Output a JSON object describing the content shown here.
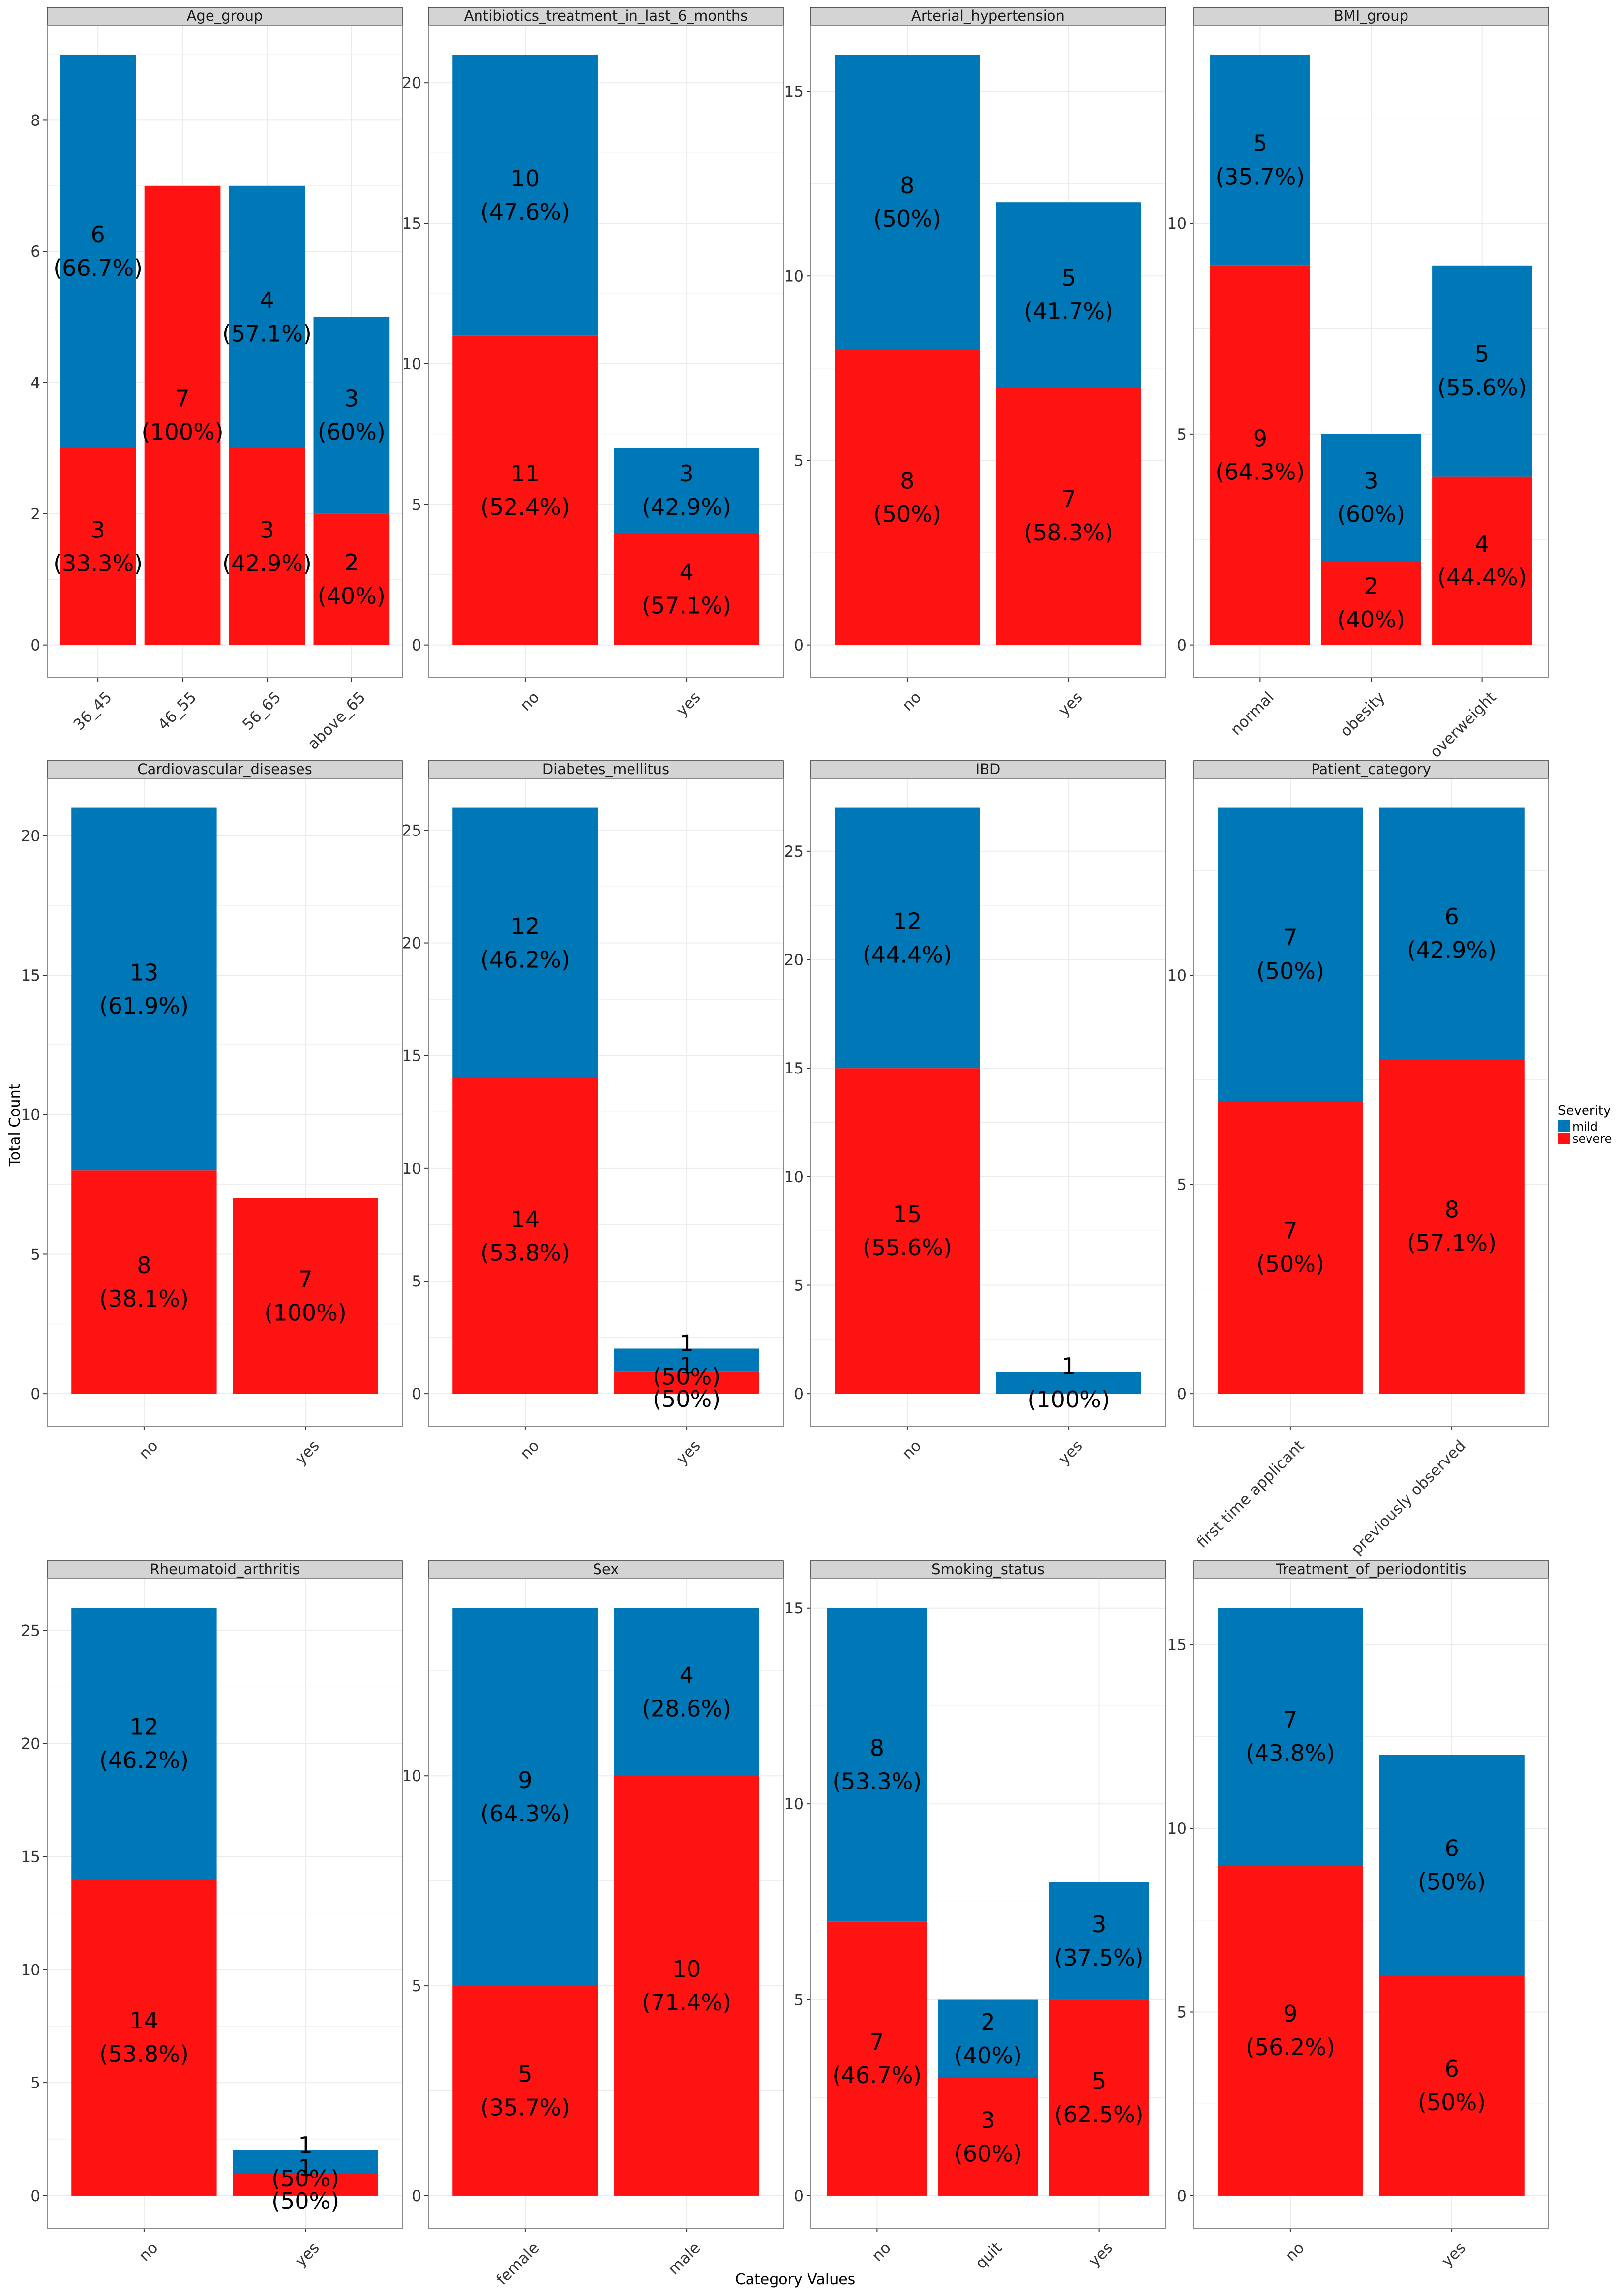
{
  "figure": {
    "x_axis_title": "Category Values",
    "y_axis_title": "Total Count",
    "legend_title": "Severity",
    "legend_items": [
      {
        "key": "mild",
        "label": "mild"
      },
      {
        "key": "severe",
        "label": "severe"
      }
    ],
    "colors": {
      "mild": "#0077B6",
      "severe": "#FF1212",
      "strip": "#D4D4D4",
      "grid": "#EBEBEB",
      "panel_border": "#8A8A8A"
    }
  },
  "chart_data": [
    {
      "type": "bar",
      "title": "Age_group",
      "ylim": [
        0,
        9.45
      ],
      "yticks": [
        0,
        2,
        4,
        6,
        8
      ],
      "categories": [
        "36_45",
        "46_55",
        "56_65",
        "above_65"
      ],
      "series": [
        {
          "name": "severe",
          "values": [
            3,
            7,
            3,
            2
          ],
          "labels": [
            "3\n(33.3%)",
            "7\n(100%)",
            "3\n(42.9%)",
            "2\n(40%)"
          ]
        },
        {
          "name": "mild",
          "values": [
            6,
            0,
            4,
            3
          ],
          "labels": [
            "6\n(66.7%)",
            "",
            "4\n(57.1%)",
            "3\n(60%)"
          ]
        }
      ]
    },
    {
      "type": "bar",
      "title": "Antibiotics_treatment_in_last_6_months",
      "ylim": [
        0,
        22.05
      ],
      "yticks": [
        0,
        5,
        10,
        15,
        20
      ],
      "categories": [
        "no",
        "yes"
      ],
      "series": [
        {
          "name": "severe",
          "values": [
            11,
            4
          ],
          "labels": [
            "11\n(52.4%)",
            "4\n(57.1%)"
          ]
        },
        {
          "name": "mild",
          "values": [
            10,
            3
          ],
          "labels": [
            "10\n(47.6%)",
            "3\n(42.9%)"
          ]
        }
      ]
    },
    {
      "type": "bar",
      "title": "Arterial_hypertension",
      "ylim": [
        0,
        16.8
      ],
      "yticks": [
        0,
        5,
        10,
        15
      ],
      "categories": [
        "no",
        "yes"
      ],
      "series": [
        {
          "name": "severe",
          "values": [
            8,
            7
          ],
          "labels": [
            "8\n(50%)",
            "7\n(58.3%)"
          ]
        },
        {
          "name": "mild",
          "values": [
            8,
            5
          ],
          "labels": [
            "8\n(50%)",
            "5\n(41.7%)"
          ]
        }
      ]
    },
    {
      "type": "bar",
      "title": "BMI_group",
      "ylim": [
        0,
        14.7
      ],
      "yticks": [
        0,
        5,
        10
      ],
      "categories": [
        "normal",
        "obesity",
        "overweight"
      ],
      "series": [
        {
          "name": "severe",
          "values": [
            9,
            2,
            4
          ],
          "labels": [
            "9\n(64.3%)",
            "2\n(40%)",
            "4\n(44.4%)"
          ]
        },
        {
          "name": "mild",
          "values": [
            5,
            3,
            5
          ],
          "labels": [
            "5\n(35.7%)",
            "3\n(60%)",
            "5\n(55.6%)"
          ]
        }
      ]
    },
    {
      "type": "bar",
      "title": "Cardiovascular_diseases",
      "ylim": [
        0,
        22.05
      ],
      "yticks": [
        0,
        5,
        10,
        15,
        20
      ],
      "categories": [
        "no",
        "yes"
      ],
      "series": [
        {
          "name": "severe",
          "values": [
            8,
            7
          ],
          "labels": [
            "8\n(38.1%)",
            "7\n(100%)"
          ]
        },
        {
          "name": "mild",
          "values": [
            13,
            0
          ],
          "labels": [
            "13\n(61.9%)",
            ""
          ]
        }
      ]
    },
    {
      "type": "bar",
      "title": "Diabetes_mellitus",
      "ylim": [
        0,
        27.3
      ],
      "yticks": [
        0,
        5,
        10,
        15,
        20,
        25
      ],
      "categories": [
        "no",
        "yes"
      ],
      "series": [
        {
          "name": "severe",
          "values": [
            14,
            1
          ],
          "labels": [
            "14\n(53.8%)",
            "1\n(50%)"
          ]
        },
        {
          "name": "mild",
          "values": [
            12,
            1
          ],
          "labels": [
            "12\n(46.2%)",
            "1\n(50%)"
          ]
        }
      ]
    },
    {
      "type": "bar",
      "title": "IBD",
      "ylim": [
        0,
        28.35
      ],
      "yticks": [
        0,
        5,
        10,
        15,
        20,
        25
      ],
      "categories": [
        "no",
        "yes"
      ],
      "series": [
        {
          "name": "severe",
          "values": [
            15,
            0
          ],
          "labels": [
            "15\n(55.6%)",
            ""
          ]
        },
        {
          "name": "mild",
          "values": [
            12,
            1
          ],
          "labels": [
            "12\n(44.4%)",
            "1\n(100%)"
          ]
        }
      ]
    },
    {
      "type": "bar",
      "title": "Patient_category",
      "ylim": [
        0,
        14.7
      ],
      "yticks": [
        0,
        5,
        10
      ],
      "categories": [
        "first time applicant",
        "previously observed"
      ],
      "series": [
        {
          "name": "severe",
          "values": [
            7,
            8
          ],
          "labels": [
            "7\n(50%)",
            "8\n(57.1%)"
          ]
        },
        {
          "name": "mild",
          "values": [
            7,
            6
          ],
          "labels": [
            "7\n(50%)",
            "6\n(42.9%)"
          ]
        }
      ]
    },
    {
      "type": "bar",
      "title": "Rheumatoid_arthritis",
      "ylim": [
        0,
        27.3
      ],
      "yticks": [
        0,
        5,
        10,
        15,
        20,
        25
      ],
      "categories": [
        "no",
        "yes"
      ],
      "series": [
        {
          "name": "severe",
          "values": [
            14,
            1
          ],
          "labels": [
            "14\n(53.8%)",
            "1\n(50%)"
          ]
        },
        {
          "name": "mild",
          "values": [
            12,
            1
          ],
          "labels": [
            "12\n(46.2%)",
            "1\n(50%)"
          ]
        }
      ]
    },
    {
      "type": "bar",
      "title": "Sex",
      "ylim": [
        0,
        14.7
      ],
      "yticks": [
        0,
        5,
        10
      ],
      "categories": [
        "female",
        "male"
      ],
      "series": [
        {
          "name": "severe",
          "values": [
            5,
            10
          ],
          "labels": [
            "5\n(35.7%)",
            "10\n(71.4%)"
          ]
        },
        {
          "name": "mild",
          "values": [
            9,
            4
          ],
          "labels": [
            "9\n(64.3%)",
            "4\n(28.6%)"
          ]
        }
      ]
    },
    {
      "type": "bar",
      "title": "Smoking_status",
      "ylim": [
        0,
        15.75
      ],
      "yticks": [
        0,
        5,
        10,
        15
      ],
      "categories": [
        "no",
        "quit",
        "yes"
      ],
      "series": [
        {
          "name": "severe",
          "values": [
            7,
            3,
            5
          ],
          "labels": [
            "7\n(46.7%)",
            "3\n(60%)",
            "5\n(62.5%)"
          ]
        },
        {
          "name": "mild",
          "values": [
            8,
            2,
            3
          ],
          "labels": [
            "8\n(53.3%)",
            "2\n(40%)",
            "3\n(37.5%)"
          ]
        }
      ]
    },
    {
      "type": "bar",
      "title": "Treatment_of_periodontitis",
      "ylim": [
        0,
        16.8
      ],
      "yticks": [
        0,
        5,
        10,
        15
      ],
      "categories": [
        "no",
        "yes"
      ],
      "series": [
        {
          "name": "severe",
          "values": [
            9,
            6
          ],
          "labels": [
            "9\n(56.2%)",
            "6\n(50%)"
          ]
        },
        {
          "name": "mild",
          "values": [
            7,
            6
          ],
          "labels": [
            "7\n(43.8%)",
            "6\n(50%)"
          ]
        }
      ]
    }
  ]
}
